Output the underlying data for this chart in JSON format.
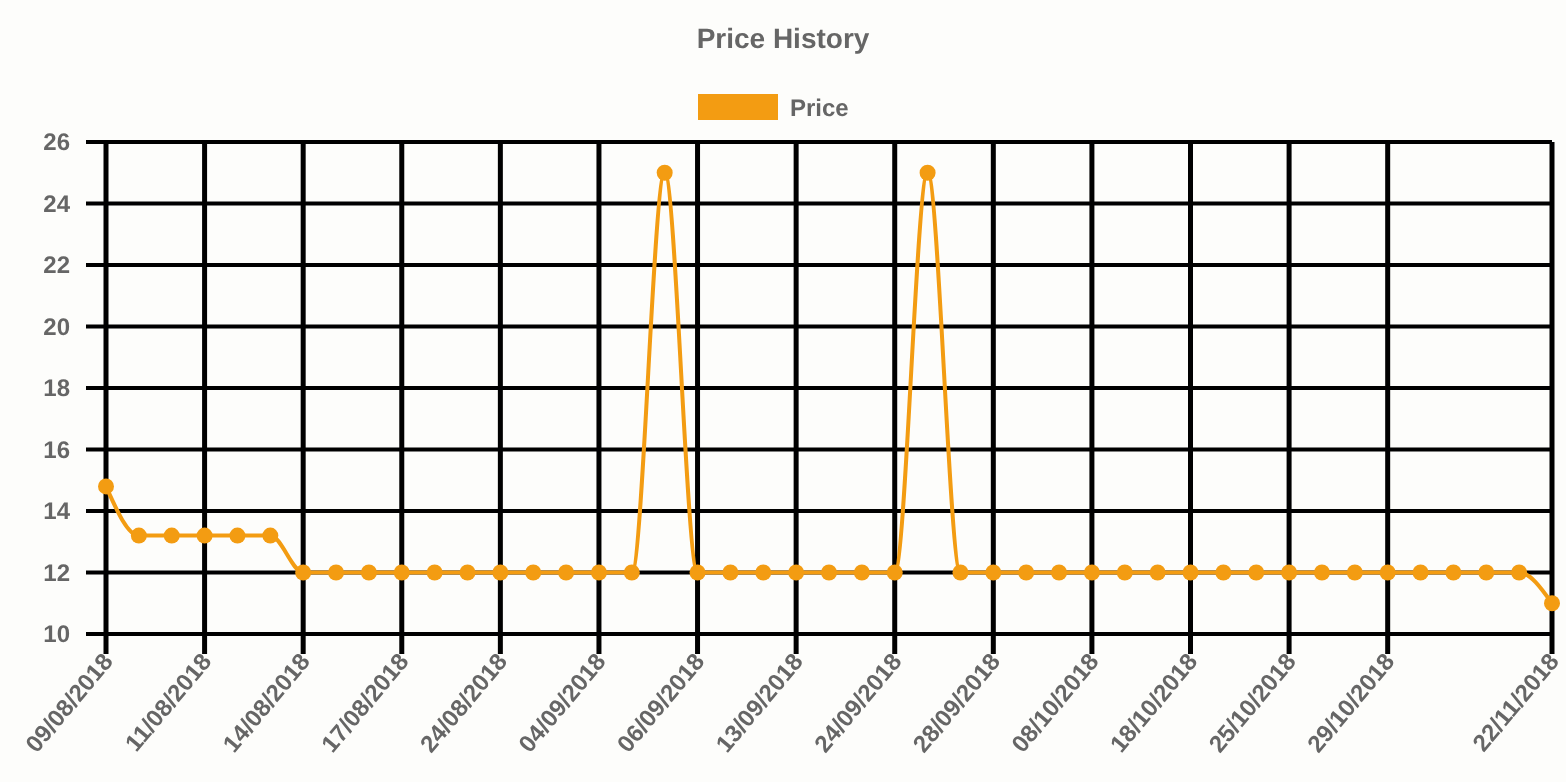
{
  "chart_data": {
    "type": "line",
    "title": "Price History",
    "categories": [
      "09/08/2018",
      null,
      null,
      "11/08/2018",
      null,
      null,
      "14/08/2018",
      null,
      null,
      "17/08/2018",
      null,
      null,
      "24/08/2018",
      null,
      null,
      "04/09/2018",
      null,
      null,
      "06/09/2018",
      null,
      null,
      "13/09/2018",
      null,
      null,
      "24/09/2018",
      null,
      null,
      "28/09/2018",
      null,
      null,
      "08/10/2018",
      null,
      null,
      "18/10/2018",
      null,
      null,
      "25/10/2018",
      null,
      null,
      "29/10/2018",
      null,
      null,
      null,
      null,
      "22/11/2018"
    ],
    "series": [
      {
        "name": "Price",
        "color": "#f39c12",
        "values": [
          14.8,
          13.2,
          13.2,
          13.2,
          13.2,
          13.2,
          12,
          12,
          12,
          12,
          12,
          12,
          12,
          12,
          12,
          12,
          12,
          25,
          12,
          12,
          12,
          12,
          12,
          12,
          12,
          25,
          12,
          12,
          12,
          12,
          12,
          12,
          12,
          12,
          12,
          12,
          12,
          12,
          12,
          12,
          12,
          12,
          12,
          12,
          11
        ]
      }
    ],
    "ylim": [
      10,
      26
    ],
    "yticks": [
      10,
      12,
      14,
      16,
      18,
      20,
      22,
      24,
      26
    ],
    "grid": true,
    "legend": "top",
    "marker": "circle",
    "line_style": "solid"
  }
}
